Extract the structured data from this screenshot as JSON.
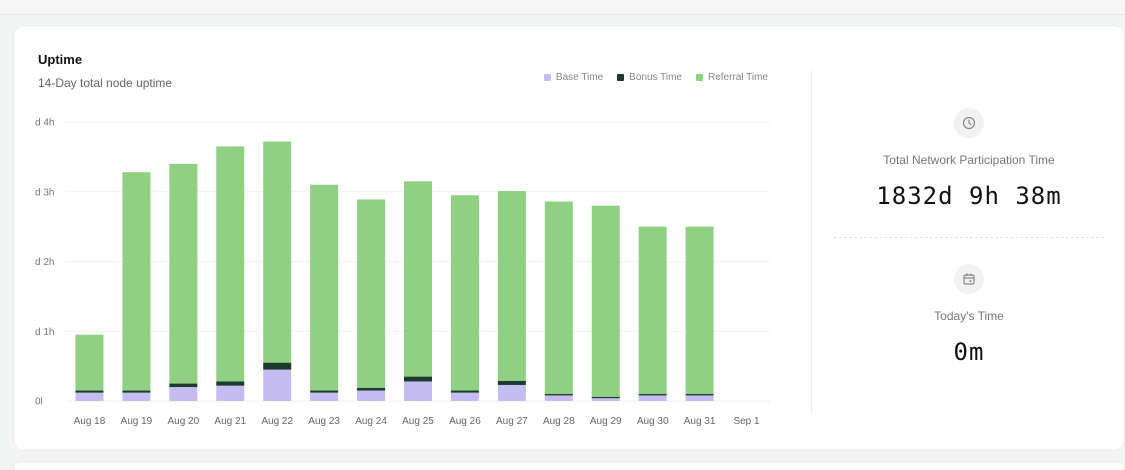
{
  "uptime_card": {
    "title": "Uptime",
    "subtitle": "14-Day total node uptime"
  },
  "legend": [
    {
      "label": "Base Time",
      "color": "#c5bdf2"
    },
    {
      "label": "Bonus Time",
      "color": "#1c3b2c"
    },
    {
      "label": "Referral Time",
      "color": "#8fd083"
    }
  ],
  "chart_data": {
    "type": "bar",
    "stacked": true,
    "categories": [
      "Aug 18",
      "Aug 19",
      "Aug 20",
      "Aug 21",
      "Aug 22",
      "Aug 23",
      "Aug 24",
      "Aug 25",
      "Aug 26",
      "Aug 27",
      "Aug 28",
      "Aug 29",
      "Aug 30",
      "Aug 31",
      "Sep 1"
    ],
    "y_ticks": [
      "0l",
      "d 1h",
      "d 2h",
      "d 3h",
      "d 4h"
    ],
    "ylim": [
      0,
      4
    ],
    "y_unit": "hours",
    "grid": true,
    "legend_position": "top-right",
    "series": [
      {
        "name": "Base Time",
        "color": "#c5bdf2",
        "values": [
          0.12,
          0.12,
          0.2,
          0.22,
          0.45,
          0.12,
          0.15,
          0.28,
          0.12,
          0.23,
          0.08,
          0.04,
          0.08,
          0.08,
          0
        ]
      },
      {
        "name": "Bonus Time",
        "color": "#1c3b2c",
        "values": [
          0.03,
          0.03,
          0.05,
          0.06,
          0.1,
          0.03,
          0.04,
          0.07,
          0.03,
          0.06,
          0.02,
          0.02,
          0.02,
          0.02,
          0
        ]
      },
      {
        "name": "Referral Time",
        "color": "#8fd083",
        "values": [
          0.8,
          3.13,
          3.15,
          3.37,
          3.17,
          2.95,
          2.7,
          2.8,
          2.8,
          2.72,
          2.76,
          2.74,
          2.4,
          2.4,
          0
        ]
      }
    ]
  },
  "stats": {
    "total": {
      "label": "Total Network Participation Time",
      "value": "1832d 9h 38m",
      "icon": "clock-icon"
    },
    "today": {
      "label": "Today's Time",
      "value": "0m",
      "icon": "calendar-icon"
    }
  }
}
